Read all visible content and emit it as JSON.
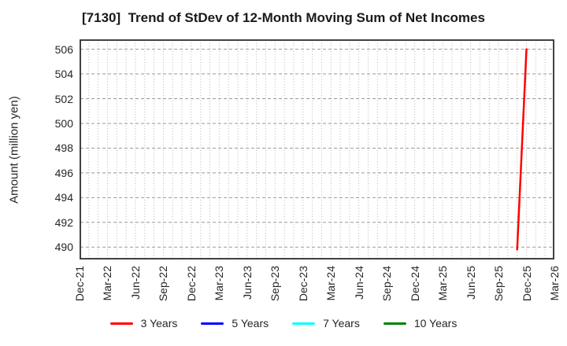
{
  "chart_data": {
    "type": "line",
    "title": "[7130]  Trend of StDev of 12-Month Moving Sum of Net Incomes",
    "xlabel": "",
    "ylabel": "Amount (million yen)",
    "x_tick_labels": [
      "Dec-21",
      "Mar-22",
      "Jun-22",
      "Sep-22",
      "Dec-22",
      "Mar-23",
      "Jun-23",
      "Sep-23",
      "Dec-23",
      "Mar-24",
      "Jun-24",
      "Sep-24",
      "Dec-24",
      "Mar-25",
      "Jun-25",
      "Sep-25",
      "Dec-25",
      "Mar-26"
    ],
    "yticks": [
      490,
      492,
      494,
      496,
      498,
      500,
      502,
      504,
      506
    ],
    "ylim": [
      489.0,
      506.8
    ],
    "grid": "on",
    "grid_style": {
      "horizontal": "dashed",
      "vertical_minor": "dotted-monthly"
    },
    "legend_position": "bottom-center",
    "series": [
      {
        "name": "3 Years",
        "color": "#ff0000",
        "points": [
          {
            "x": "Nov-25",
            "y": 489.8
          },
          {
            "x": "Dec-25",
            "y": 506.0
          }
        ]
      },
      {
        "name": "5 Years",
        "color": "#0000ff",
        "points": []
      },
      {
        "name": "7 Years",
        "color": "#00ffff",
        "points": []
      },
      {
        "name": "10 Years",
        "color": "#008000",
        "points": []
      }
    ],
    "colors": {
      "background": "#ffffff",
      "axis_border": "#2e2e2e",
      "grid_major_h": "#999999",
      "grid_minor_v": "#b5b5b5",
      "tick_text": "#262626",
      "title_text": "#1a1a1a"
    }
  }
}
